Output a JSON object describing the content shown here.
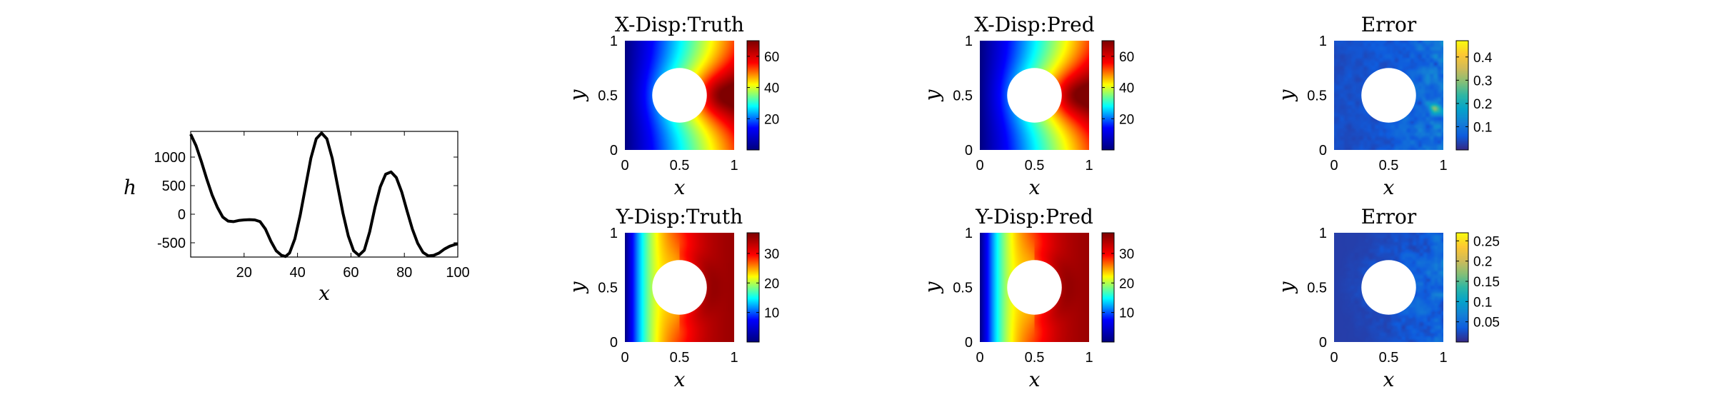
{
  "colors": {
    "line": "#000000",
    "hole": "#ffffff",
    "jet": [
      "#00007f",
      "#0000ff",
      "#00ffff",
      "#ffff00",
      "#ff0000",
      "#7f0000"
    ],
    "parula": [
      "#352a87",
      "#0f5cdd",
      "#1481d6",
      "#06a4ca",
      "#2eb7a4",
      "#87bf77",
      "#d1bb59",
      "#fec832",
      "#f9fb0e"
    ]
  },
  "chart_data": [
    {
      "type": "line",
      "title": "",
      "xlabel": "x",
      "ylabel": "h",
      "xlim": [
        0,
        100
      ],
      "ylim": [
        -750,
        1450
      ],
      "xticks": [
        "20",
        "40",
        "60",
        "80",
        "100"
      ],
      "yticks": [
        "-500",
        "0",
        "500",
        "1000"
      ],
      "series": [
        {
          "x": [
            0,
            2,
            4,
            6,
            8,
            10,
            12,
            14,
            16,
            18,
            20,
            22,
            24,
            26,
            28,
            30,
            32,
            34,
            35.5,
            37,
            39,
            41,
            43,
            45,
            47,
            49,
            51,
            53,
            55,
            57,
            59,
            61,
            63,
            65,
            67,
            69,
            71,
            73,
            75,
            77,
            79,
            81,
            83,
            85,
            87,
            89,
            91,
            93,
            95,
            97,
            99,
            100
          ],
          "y": [
            1400,
            1200,
            920,
            620,
            340,
            120,
            -50,
            -120,
            -130,
            -110,
            -100,
            -95,
            -100,
            -130,
            -260,
            -470,
            -640,
            -720,
            -740,
            -680,
            -430,
            -20,
            480,
            980,
            1320,
            1420,
            1320,
            980,
            500,
            20,
            -380,
            -640,
            -720,
            -630,
            -310,
            120,
            480,
            700,
            740,
            640,
            390,
            60,
            -260,
            -510,
            -670,
            -730,
            -720,
            -680,
            -610,
            -560,
            -530,
            -520
          ]
        }
      ]
    },
    {
      "type": "heatmap",
      "title": "X-Disp:Truth",
      "xlabel": "x",
      "ylabel": "y",
      "xlim": [
        0,
        1
      ],
      "ylim": [
        0,
        1
      ],
      "xticks": [
        "0",
        "0.5",
        "1"
      ],
      "yticks": [
        "0",
        "0.5",
        "1"
      ],
      "hole": {
        "center": [
          0.5,
          0.5
        ],
        "radius": 0.25
      },
      "colormap": "jet",
      "colorbar": {
        "min": 0,
        "max": 70,
        "ticks": [
          "20",
          "40",
          "60"
        ]
      },
      "field": {
        "left": 0,
        "right_center": 68
      }
    },
    {
      "type": "heatmap",
      "title": "X-Disp:Pred",
      "xlabel": "x",
      "ylabel": "y",
      "xlim": [
        0,
        1
      ],
      "ylim": [
        0,
        1
      ],
      "xticks": [
        "0",
        "0.5",
        "1"
      ],
      "yticks": [
        "0",
        "0.5",
        "1"
      ],
      "hole": {
        "center": [
          0.5,
          0.5
        ],
        "radius": 0.25
      },
      "colormap": "jet",
      "colorbar": {
        "min": 0,
        "max": 70,
        "ticks": [
          "20",
          "40",
          "60"
        ]
      },
      "field": {
        "left": 0,
        "right_center": 68
      }
    },
    {
      "type": "heatmap",
      "title": "Error",
      "xlabel": "x",
      "ylabel": "y",
      "xlim": [
        0,
        1
      ],
      "ylim": [
        0,
        1
      ],
      "xticks": [
        "0",
        "0.5",
        "1"
      ],
      "yticks": [
        "0",
        "0.5",
        "1"
      ],
      "hole": {
        "center": [
          0.5,
          0.5
        ],
        "radius": 0.25
      },
      "colormap": "parula",
      "colorbar": {
        "min": 0,
        "max": 0.47,
        "ticks": [
          "0.1",
          "0.2",
          "0.3",
          "0.4"
        ]
      }
    },
    {
      "type": "heatmap",
      "title": "Y-Disp:Truth",
      "xlabel": "x",
      "ylabel": "y",
      "xlim": [
        0,
        1
      ],
      "ylim": [
        0,
        1
      ],
      "xticks": [
        "0",
        "0.5",
        "1"
      ],
      "yticks": [
        "0",
        "0.5",
        "1"
      ],
      "hole": {
        "center": [
          0.5,
          0.5
        ],
        "radius": 0.25
      },
      "colormap": "jet",
      "colorbar": {
        "min": 0,
        "max": 37,
        "ticks": [
          "10",
          "20",
          "30"
        ]
      },
      "field": {
        "left": 0,
        "right": 35
      }
    },
    {
      "type": "heatmap",
      "title": "Y-Disp:Pred",
      "xlabel": "x",
      "ylabel": "y",
      "xlim": [
        0,
        1
      ],
      "ylim": [
        0,
        1
      ],
      "xticks": [
        "0",
        "0.5",
        "1"
      ],
      "yticks": [
        "0",
        "0.5",
        "1"
      ],
      "hole": {
        "center": [
          0.5,
          0.5
        ],
        "radius": 0.25
      },
      "colormap": "jet",
      "colorbar": {
        "min": 0,
        "max": 37,
        "ticks": [
          "10",
          "20",
          "30"
        ]
      },
      "field": {
        "left": 0,
        "right": 35
      }
    },
    {
      "type": "heatmap",
      "title": "Error",
      "xlabel": "x",
      "ylabel": "y",
      "xlim": [
        0,
        1
      ],
      "ylim": [
        0,
        1
      ],
      "xticks": [
        "0",
        "0.5",
        "1"
      ],
      "yticks": [
        "0",
        "0.5",
        "1"
      ],
      "hole": {
        "center": [
          0.5,
          0.5
        ],
        "radius": 0.25
      },
      "colormap": "parula",
      "colorbar": {
        "min": 0,
        "max": 0.27,
        "ticks": [
          "0.05",
          "0.1",
          "0.15",
          "0.2",
          "0.25"
        ]
      }
    }
  ]
}
